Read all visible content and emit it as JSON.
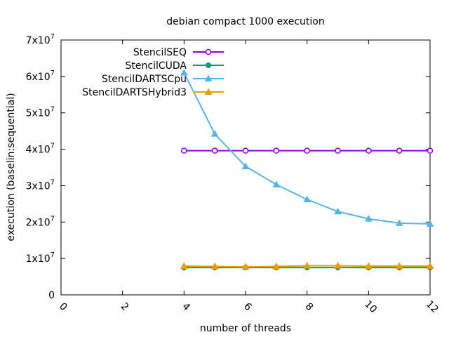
{
  "chart_data": {
    "type": "line",
    "title": "debian compact 1000 execution",
    "xlabel": "number of threads",
    "ylabel": "execution (baselin:sequential)",
    "xlim": [
      0,
      12
    ],
    "ylim": [
      0,
      70000000
    ],
    "x_ticks": [
      {
        "value": 0,
        "label": "0"
      },
      {
        "value": 2,
        "label": "2"
      },
      {
        "value": 4,
        "label": "4"
      },
      {
        "value": 6,
        "label": "6"
      },
      {
        "value": 8,
        "label": "8"
      },
      {
        "value": 10,
        "label": "10"
      },
      {
        "value": 12,
        "label": "12"
      }
    ],
    "y_ticks": [
      {
        "value": 0,
        "base": "0",
        "exp": ""
      },
      {
        "value": 10000000,
        "base": "1x10",
        "exp": "7"
      },
      {
        "value": 20000000,
        "base": "2x10",
        "exp": "7"
      },
      {
        "value": 30000000,
        "base": "3x10",
        "exp": "7"
      },
      {
        "value": 40000000,
        "base": "4x10",
        "exp": "7"
      },
      {
        "value": 50000000,
        "base": "5x10",
        "exp": "7"
      },
      {
        "value": 60000000,
        "base": "6x10",
        "exp": "7"
      },
      {
        "value": 70000000,
        "base": "7x10",
        "exp": "7"
      }
    ],
    "grid": false,
    "legend_position": "top-left",
    "series": [
      {
        "name": "StencilSEQ",
        "color": "#9400d3",
        "marker": "circle-open",
        "x": [
          4,
          5,
          6,
          7,
          8,
          9,
          10,
          11,
          12
        ],
        "y": [
          39600000,
          39600000,
          39600000,
          39600000,
          39600000,
          39600000,
          39600000,
          39600000,
          39600000
        ]
      },
      {
        "name": "StencilCUDA",
        "color": "#009e73",
        "marker": "circle-filled",
        "x": [
          4,
          5,
          6,
          7,
          8,
          9,
          10,
          11,
          12
        ],
        "y": [
          7500000,
          7500000,
          7500000,
          7500000,
          7500000,
          7500000,
          7500000,
          7500000,
          7500000
        ]
      },
      {
        "name": "StencilDARTSCpu",
        "color": "#56b4e9",
        "marker": "triangle",
        "x": [
          4,
          5,
          6,
          7,
          8,
          9,
          10,
          11,
          12
        ],
        "y": [
          61000000,
          44200000,
          35300000,
          30300000,
          26200000,
          22900000,
          20900000,
          19700000,
          19500000
        ]
      },
      {
        "name": "StencilDARTSHybrid3",
        "color": "#e69f00",
        "marker": "triangle",
        "x": [
          4,
          5,
          6,
          7,
          8,
          9,
          10,
          11,
          12
        ],
        "y": [
          7900000,
          7800000,
          7700000,
          7800000,
          8000000,
          8000000,
          7900000,
          7900000,
          7900000
        ]
      }
    ]
  }
}
